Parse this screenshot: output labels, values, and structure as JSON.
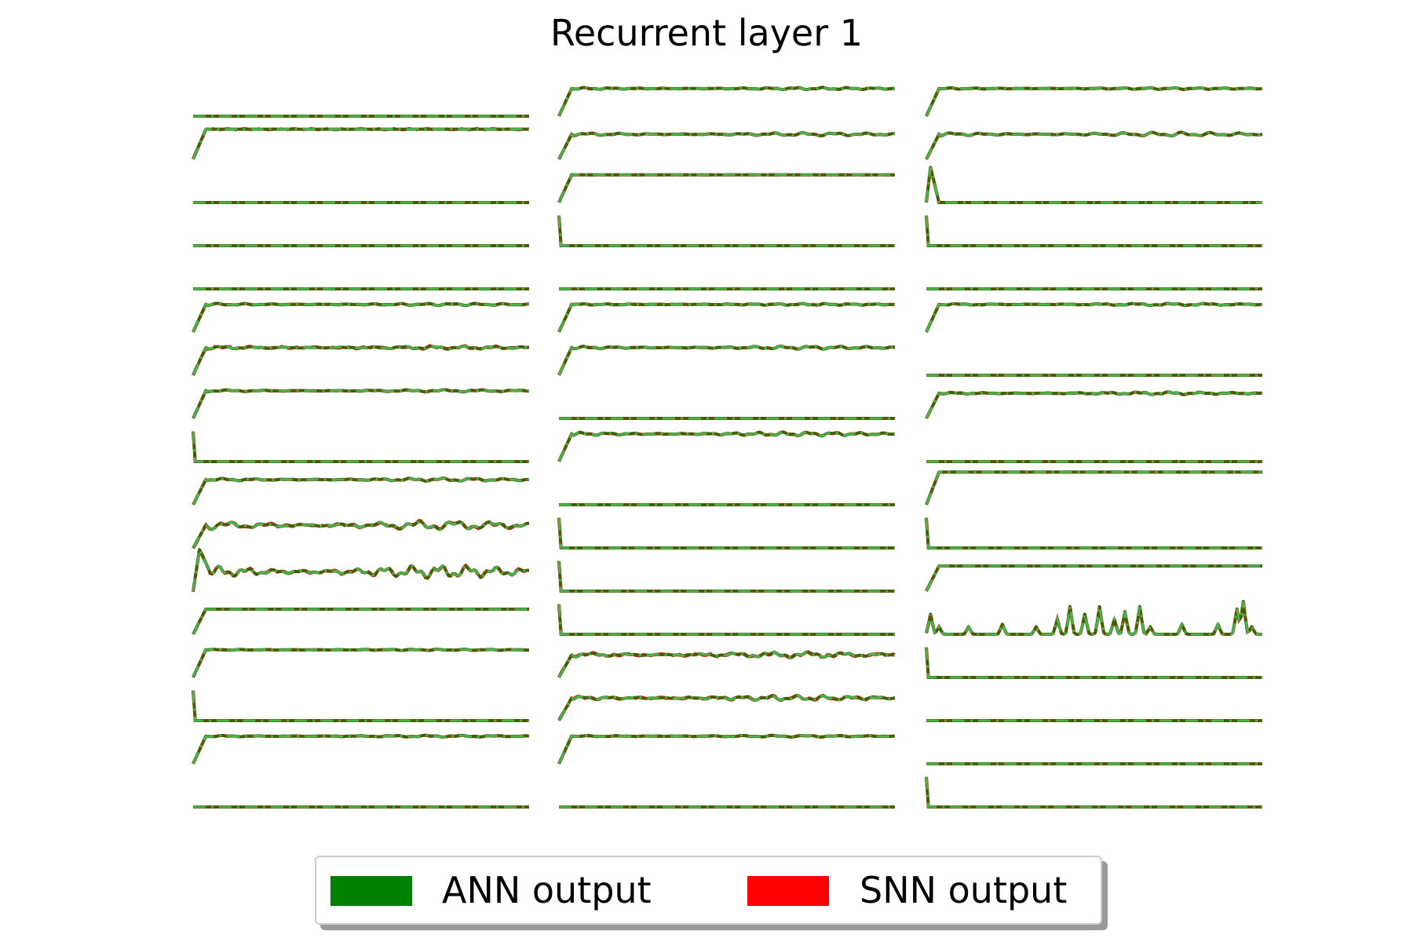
{
  "title": "Recurrent layer 1",
  "legend": {
    "entries": [
      {
        "label": "ANN output",
        "color": "#008000"
      },
      {
        "label": "SNN output",
        "color": "#ff0000"
      }
    ]
  },
  "chart_data": {
    "type": "line",
    "title": "Recurrent layer 1",
    "layout": "3 columns of stacked per-neuron activation traces; axes hidden",
    "series": [
      {
        "name": "ANN output",
        "color": "#008000",
        "style": "solid"
      },
      {
        "name": "SNN output",
        "color": "#ff0000",
        "style": "dash-dot"
      }
    ],
    "overlay_colors": {
      "dark_trace": "#4d5a00",
      "light_trace": "#4caf50"
    },
    "columns": [
      [
        {
          "kind": "flat"
        },
        {
          "kind": "step_plateau",
          "amp": 1.2,
          "diverge": 0.3
        },
        {
          "kind": "flat"
        },
        {
          "kind": "flat"
        },
        {
          "kind": "flat"
        },
        {
          "kind": "step_plateau",
          "amp": 1.1,
          "noise": 0.25
        },
        {
          "kind": "step_plateau",
          "amp": 1.1,
          "noise": 0.35,
          "diverge": 0.4
        },
        {
          "kind": "step_plateau",
          "amp": 1.1,
          "noise": 0.25
        },
        {
          "kind": "vertical_then_flat"
        },
        {
          "kind": "step_plateau",
          "amp": 1.0,
          "noise": 0.35
        },
        {
          "kind": "step_plateau",
          "amp": 0.9,
          "noise": 1.0,
          "diverge": 0.5
        },
        {
          "kind": "peak_then_oscillation",
          "amp": 1.1,
          "noise": 1.1,
          "diverge": 0.4
        },
        {
          "kind": "step_plateau",
          "amp": 1.0
        },
        {
          "kind": "step_plateau",
          "amp": 1.1,
          "noise": 0.15
        },
        {
          "kind": "vertical_then_flat"
        },
        {
          "kind": "step_plateau",
          "amp": 1.1,
          "noise": 0.2
        },
        {
          "kind": "flat"
        }
      ],
      [
        {
          "kind": "step_plateau",
          "amp": 1.1,
          "noise": 0.25
        },
        {
          "kind": "step_plateau",
          "amp": 1.0,
          "noise": 0.35
        },
        {
          "kind": "step_plateau",
          "amp": 1.1
        },
        {
          "kind": "vertical_then_flat"
        },
        {
          "kind": "flat"
        },
        {
          "kind": "step_plateau",
          "amp": 1.1,
          "noise": 0.2
        },
        {
          "kind": "step_plateau",
          "amp": 1.1,
          "noise": 0.35
        },
        {
          "kind": "flat"
        },
        {
          "kind": "step_plateau",
          "amp": 1.1,
          "noise": 0.45
        },
        {
          "kind": "flat"
        },
        {
          "kind": "vertical_then_flat"
        },
        {
          "kind": "vertical_then_flat"
        },
        {
          "kind": "vertical_then_flat"
        },
        {
          "kind": "step_plateau",
          "amp": 0.9,
          "noise": 0.6,
          "diverge": 0.5
        },
        {
          "kind": "step_plateau",
          "amp": 0.9,
          "noise": 0.55,
          "diverge": 0.4
        },
        {
          "kind": "step_plateau",
          "amp": 1.1,
          "noise": 0.2
        },
        {
          "kind": "flat"
        }
      ],
      [
        {
          "kind": "step_plateau",
          "amp": 1.1,
          "noise": 0.2
        },
        {
          "kind": "step_plateau",
          "amp": 1.0,
          "noise": 0.45
        },
        {
          "kind": "peak_then_flat",
          "amp": 1.0
        },
        {
          "kind": "vertical_then_flat"
        },
        {
          "kind": "flat"
        },
        {
          "kind": "step_plateau",
          "amp": 1.1,
          "noise": 0.25
        },
        {
          "kind": "flat"
        },
        {
          "kind": "step_plateau",
          "amp": 1.0,
          "noise": 0.3
        },
        {
          "kind": "flat"
        },
        {
          "kind": "step_plateau",
          "amp": 1.3
        },
        {
          "kind": "vertical_then_flat"
        },
        {
          "kind": "step_plateau",
          "amp": 1.0
        },
        {
          "kind": "spikes",
          "amp": 1.0
        },
        {
          "kind": "vertical_then_flat"
        },
        {
          "kind": "flat"
        },
        {
          "kind": "flat"
        },
        {
          "kind": "vertical_then_flat"
        }
      ]
    ]
  }
}
